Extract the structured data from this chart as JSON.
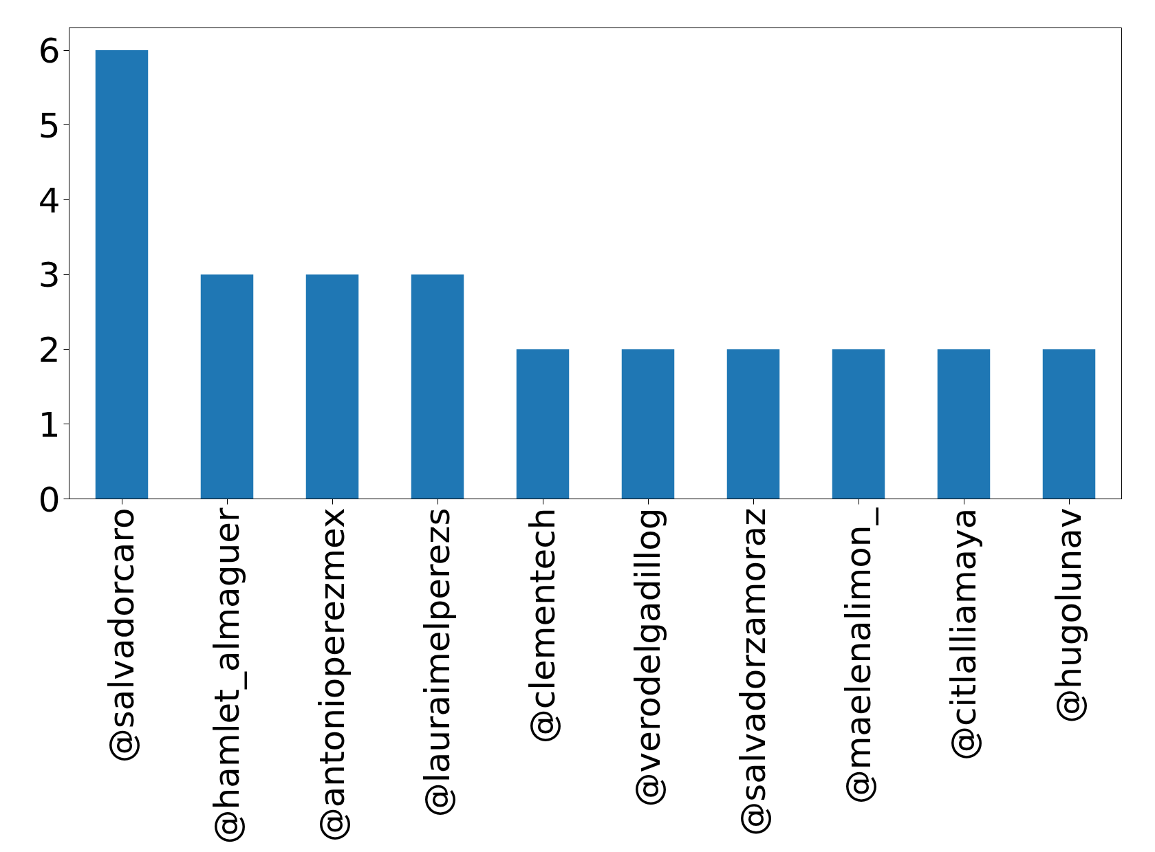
{
  "chart_data": {
    "type": "bar",
    "categories": [
      "@salvadorcaro",
      "@hamlet_almaguer",
      "@antonioperezmex",
      "@lauraimelperezs",
      "@clementech",
      "@verodelgadillog",
      "@salvadorzamoraz",
      "@maelenalimon_",
      "@citlalliamaya",
      "@hugolunav"
    ],
    "values": [
      6,
      3,
      3,
      3,
      2,
      2,
      2,
      2,
      2,
      2
    ],
    "color": "#1f77b4",
    "ylim": [
      0,
      6.3
    ],
    "yticks": [
      0,
      1,
      2,
      3,
      4,
      5,
      6
    ],
    "grid": false
  }
}
